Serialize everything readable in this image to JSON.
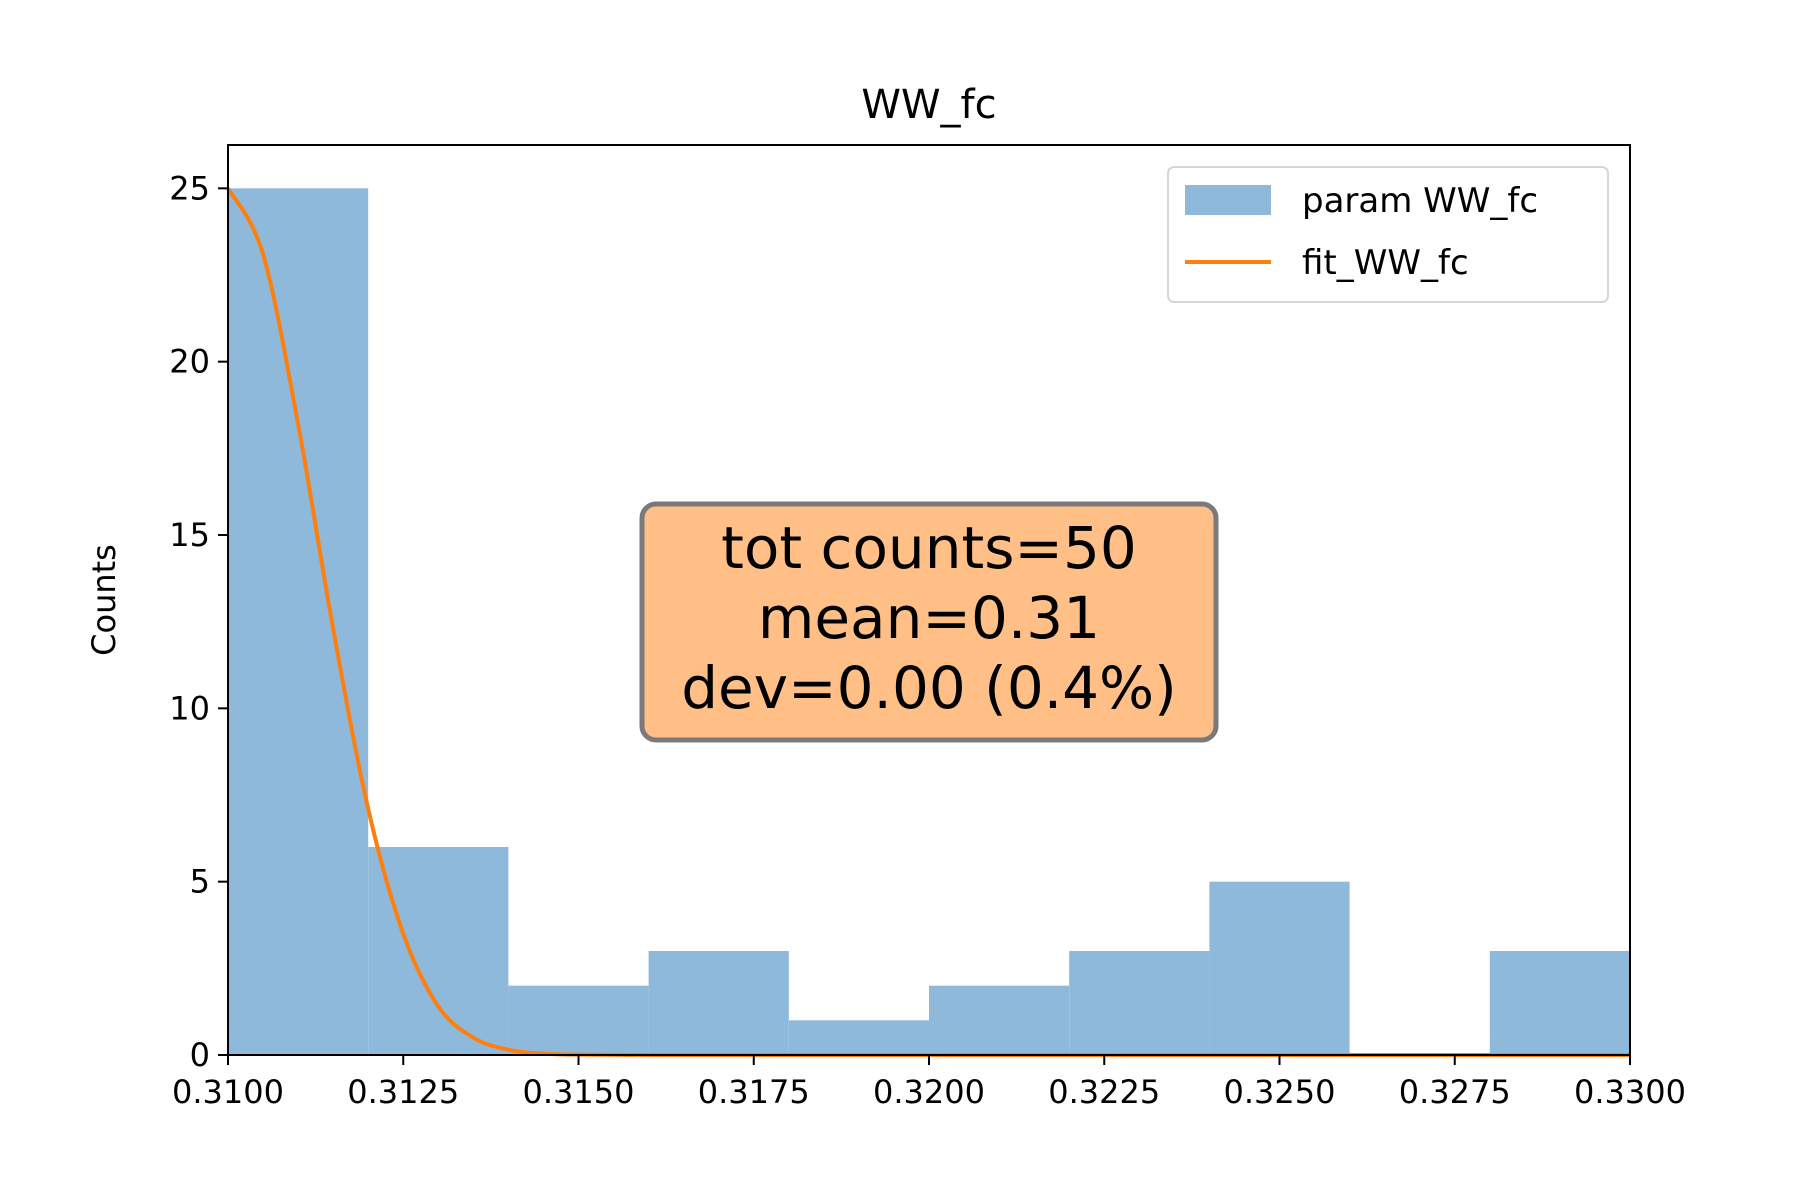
{
  "chart_data": {
    "type": "bar",
    "title": "WW_fc",
    "xlabel": "",
    "ylabel": "Counts",
    "xlim": [
      0.31,
      0.33
    ],
    "ylim": [
      0,
      26.25
    ],
    "x_ticks": [
      0.31,
      0.3125,
      0.315,
      0.3175,
      0.32,
      0.3225,
      0.325,
      0.3275,
      0.33
    ],
    "x_tick_labels": [
      "0.3100",
      "0.3125",
      "0.3150",
      "0.3175",
      "0.3200",
      "0.3225",
      "0.3250",
      "0.3275",
      "0.3300"
    ],
    "y_ticks": [
      0,
      5,
      10,
      15,
      20,
      25
    ],
    "y_tick_labels": [
      "0",
      "5",
      "10",
      "15",
      "20",
      "25"
    ],
    "grid": false,
    "legend_position": "top-right",
    "series": [
      {
        "name": "param WW_fc",
        "kind": "histogram",
        "color": "#8fb9da",
        "bin_edges": [
          0.31,
          0.312,
          0.314,
          0.316,
          0.318,
          0.32,
          0.322,
          0.324,
          0.326,
          0.328,
          0.33
        ],
        "values": [
          25,
          6,
          2,
          3,
          1,
          2,
          3,
          5,
          0,
          3
        ]
      },
      {
        "name": "fit_WW_fc",
        "kind": "line",
        "color": "#ff7f0e",
        "x": [
          0.31,
          0.3105,
          0.311,
          0.3115,
          0.312,
          0.3125,
          0.313,
          0.3135,
          0.314,
          0.3145,
          0.315,
          0.316,
          0.318,
          0.32,
          0.322,
          0.324,
          0.326,
          0.328,
          0.33
        ],
        "y": [
          25,
          23.1,
          18.2,
          12.3,
          7.1,
          3.5,
          1.4,
          0.5,
          0.15,
          0.04,
          0.01,
          0,
          0,
          0,
          0,
          0,
          0,
          0,
          0
        ]
      }
    ],
    "annotation": {
      "lines": [
        "tot counts=50",
        "mean=0.31",
        "dev=0.00 (0.4%)"
      ],
      "box_color": "#ffbf87",
      "edge_color": "#7a7a7a"
    }
  }
}
